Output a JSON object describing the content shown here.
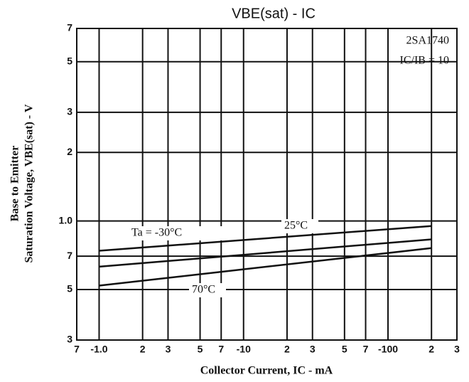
{
  "chart_data": {
    "type": "line",
    "title": "VBE(sat) - IC",
    "xlabel": "Collector Current, IC - mA",
    "ylabel": [
      "Base to Emitter",
      "Saturation Voltage, VBE(sat) - V"
    ],
    "annotations": [
      "2SA1740",
      "IC/IB = 10"
    ],
    "log_x": true,
    "log_y": true,
    "grid": true,
    "x": [
      1,
      200
    ],
    "series": [
      {
        "name": "Ta = -30°C",
        "color": "#111111",
        "values": [
          0.74,
          0.95
        ]
      },
      {
        "name": "25°C",
        "color": "#111111",
        "values": [
          0.63,
          0.83
        ]
      },
      {
        "name": "70°C",
        "color": "#111111",
        "values": [
          0.52,
          0.76
        ]
      }
    ],
    "xlim": [
      0.7,
      300
    ],
    "xticks": [
      {
        "value": 0.7,
        "label": "7"
      },
      {
        "value": 1,
        "label": "-1.0"
      },
      2,
      3,
      5,
      7,
      {
        "value": 10,
        "label": "-10"
      },
      {
        "value": 20,
        "label": "2"
      },
      {
        "value": 30,
        "label": "3"
      },
      {
        "value": 50,
        "label": "5"
      },
      {
        "value": 70,
        "label": "7"
      },
      {
        "value": 100,
        "label": "-100"
      },
      {
        "value": 200,
        "label": "2"
      },
      {
        "value": 300,
        "label": "3"
      }
    ],
    "ylim": [
      0.3,
      7
    ],
    "yticks": [
      {
        "value": 0.3,
        "label": "3"
      },
      {
        "value": 0.5,
        "label": "5"
      },
      {
        "value": 0.7,
        "label": "7"
      },
      {
        "value": 1,
        "label": "1.0"
      },
      2,
      3,
      5,
      7
    ]
  }
}
